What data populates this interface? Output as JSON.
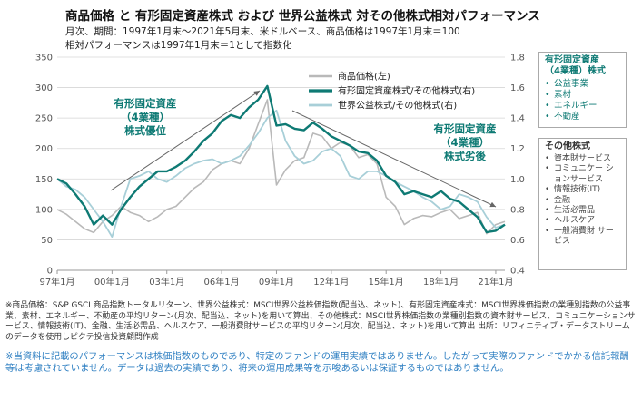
{
  "title": "商品価格 と 有形固定資産株式 および 世界公益株式 対その他株式相対パフォーマンス",
  "subtitle1": "月次、期間：1997年1月末～2021年5月末、米ドルベース、商品価格は1997年1月末＝100",
  "subtitle2": "相対パフォーマンスは1997年1月末＝1として指数化",
  "chart_data": {
    "type": "line",
    "x": [
      "97年1月",
      "97年7月",
      "98年1月",
      "98年7月",
      "99年1月",
      "99年7月",
      "00年1月",
      "00年7月",
      "01年1月",
      "01年7月",
      "02年1月",
      "02年7月",
      "03年1月",
      "03年7月",
      "04年1月",
      "04年7月",
      "05年1月",
      "05年7月",
      "06年1月",
      "06年7月",
      "07年1月",
      "07年7月",
      "08年1月",
      "08年7月",
      "09年1月",
      "09年7月",
      "10年1月",
      "10年7月",
      "11年1月",
      "11年7月",
      "12年1月",
      "12年7月",
      "13年1月",
      "13年7月",
      "14年1月",
      "14年7月",
      "15年1月",
      "15年7月",
      "16年1月",
      "16年7月",
      "17年1月",
      "17年7月",
      "18年1月",
      "18年7月",
      "19年1月",
      "19年7月",
      "20年1月",
      "20年7月",
      "21年1月",
      "21年5月"
    ],
    "x_ticks": [
      "97年1月",
      "00年1月",
      "03年1月",
      "06年1月",
      "09年1月",
      "12年1月",
      "15年1月",
      "18年1月",
      "21年1月"
    ],
    "y_left": {
      "ticks": [
        0,
        50,
        100,
        150,
        200,
        250,
        300,
        350
      ],
      "ylim": [
        0,
        350
      ]
    },
    "y_right": {
      "ticks": [
        "0.4",
        "0.6",
        "0.8",
        "1.0",
        "1.2",
        "1.4",
        "1.6",
        "1.8"
      ],
      "ylim": [
        0.4,
        1.8
      ]
    },
    "series": [
      {
        "name": "商品価格(左)",
        "axis": "left",
        "color": "#b9b9b9",
        "values": [
          100,
          92,
          80,
          68,
          62,
          80,
          90,
          105,
          95,
          90,
          80,
          88,
          100,
          105,
          120,
          135,
          145,
          165,
          175,
          180,
          175,
          200,
          240,
          280,
          140,
          165,
          180,
          185,
          225,
          220,
          200,
          210,
          205,
          185,
          190,
          175,
          120,
          105,
          75,
          85,
          90,
          88,
          95,
          100,
          85,
          90,
          95,
          60,
          75,
          80
        ]
      },
      {
        "name": "有形固定資産株式/その他株式(右)",
        "axis": "right",
        "color": "#0e7a74",
        "values": [
          1.0,
          0.97,
          0.9,
          0.82,
          0.7,
          0.76,
          0.7,
          0.8,
          0.88,
          0.95,
          1.0,
          1.05,
          1.05,
          1.08,
          1.12,
          1.18,
          1.25,
          1.3,
          1.38,
          1.42,
          1.4,
          1.47,
          1.52,
          1.61,
          1.35,
          1.36,
          1.33,
          1.32,
          1.37,
          1.33,
          1.28,
          1.25,
          1.22,
          1.18,
          1.17,
          1.12,
          1.02,
          0.98,
          0.9,
          0.92,
          0.9,
          0.88,
          0.92,
          0.87,
          0.85,
          0.8,
          0.75,
          0.65,
          0.66,
          0.7
        ]
      },
      {
        "name": "世界公益株式/その他株式(右)",
        "axis": "right",
        "color": "#a8cfd8",
        "values": [
          1.0,
          0.95,
          0.93,
          0.88,
          0.8,
          0.72,
          0.62,
          0.82,
          1.0,
          1.02,
          1.05,
          1.0,
          0.98,
          1.02,
          1.07,
          1.1,
          1.12,
          1.13,
          1.1,
          1.12,
          1.15,
          1.22,
          1.3,
          1.4,
          1.45,
          1.25,
          1.15,
          1.1,
          1.12,
          1.18,
          1.2,
          1.15,
          1.02,
          1.0,
          1.05,
          1.05,
          1.02,
          0.98,
          0.95,
          0.92,
          0.88,
          0.85,
          0.8,
          0.82,
          0.9,
          0.88,
          0.85,
          0.75,
          0.68,
          0.7
        ]
      }
    ],
    "annotations": [
      {
        "lines": [
          "有形固定資産",
          "（4業種）",
          "株式優位"
        ]
      },
      {
        "lines": [
          "有形固定資産",
          "（4業種）",
          "株式劣後"
        ]
      }
    ]
  },
  "legend_box_1": {
    "title_lines": [
      "有形固定資産",
      "（4業種）株式"
    ],
    "items": [
      "公益事業",
      "素材",
      "エネルギー",
      "不動産"
    ]
  },
  "legend_box_2": {
    "title": "その他株式",
    "items": [
      "資本財サービス",
      "コミュニケー ションサービス",
      "情報技術(IT)",
      "金融",
      "生活必需品",
      "ヘルスケア",
      "一般消費財 サービス"
    ]
  },
  "footnote": "※商品価格：S&P GSCI 商品指数トータルリターン、世界公益株式：MSCI世界公益株価指数(配当込、ネット)、有形固定資産株式：MSCI世界株価指数の業種別指数の公益事業、素材、エネルギー、不動産の平均リターン(月次、配当込、ネット)を用いて算出、その他株式：MSCI世界株価指数の業種別指数の資本財サービス、コミュニケーションサービス、情報技術(IT)、金融、生活必需品、ヘルスケア、一般消費財サービスの平均リターン(月次、配当込、ネット)を用いて算出 出所：リフィニティブ・データストリームのデータを使用しピクテ投信投資顧問作成",
  "disclaimer": "※当資料に記載のパフォーマンスは株価指数のものであり、特定のファンドの運用実績ではありません。したがって実際のファンドでかかる信託報酬等は考慮されていません。データは過去の実績であり、将来の運用成果等を示唆あるいは保証するものではありません。"
}
